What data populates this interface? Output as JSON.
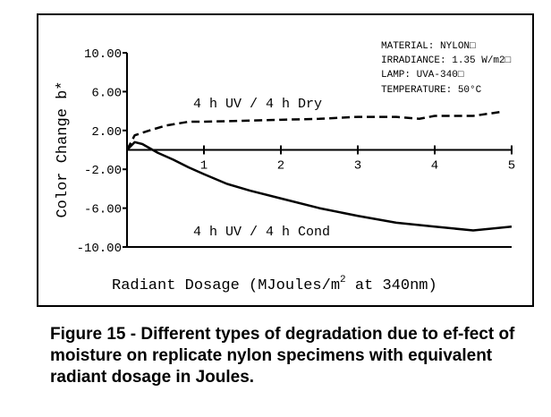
{
  "chart_data": {
    "type": "line",
    "ylabel": "Color Change  b*",
    "xlabel_main": "Radiant Dosage (MJoules/m",
    "xlabel_sup": "2",
    "xlabel_tail": " at 340nm)",
    "xlim": [
      0,
      5
    ],
    "ylim": [
      -10,
      10
    ],
    "y_ticks": [
      10,
      6,
      2,
      -2,
      -6,
      -10
    ],
    "y_tick_labels": [
      "10.00",
      "6.00",
      "2.00",
      "-2.00",
      "-6.00",
      "-10.00"
    ],
    "x_ticks": [
      1,
      2,
      3,
      4,
      5
    ],
    "x_tick_labels": [
      "1",
      "2",
      "3",
      "4",
      "5"
    ],
    "info_lines": [
      "MATERIAL:  NYLON□",
      "IRRADIANCE: 1.35 W/m2□",
      "LAMP: UVA-340□",
      "TEMPERATURE:  50°C"
    ],
    "series": [
      {
        "name": "4 h UV / 4 h Dry",
        "style": "dashed",
        "x": [
          0,
          0.1,
          0.25,
          0.5,
          0.8,
          1.0,
          1.5,
          2.0,
          2.5,
          3.0,
          3.5,
          3.8,
          4.0,
          4.5,
          4.85
        ],
        "y": [
          0,
          1.5,
          1.9,
          2.5,
          2.9,
          2.9,
          3.0,
          3.1,
          3.2,
          3.4,
          3.4,
          3.2,
          3.5,
          3.5,
          3.9
        ]
      },
      {
        "name": "4 h UV / 4 h Cond",
        "style": "solid",
        "x": [
          0,
          0.1,
          0.2,
          0.4,
          0.6,
          0.8,
          1.0,
          1.3,
          1.6,
          2.0,
          2.5,
          3.0,
          3.5,
          4.0,
          4.5,
          5.0
        ],
        "y": [
          0,
          0.8,
          0.6,
          -0.3,
          -1.0,
          -1.8,
          -2.5,
          -3.5,
          -4.2,
          -5.0,
          -6.0,
          -6.8,
          -7.5,
          -7.9,
          -8.3,
          -7.9
        ]
      }
    ]
  },
  "caption": "Figure 15 - Different types of degradation due to ef-fect of moisture on replicate nylon specimens with equivalent radiant dosage in Joules."
}
